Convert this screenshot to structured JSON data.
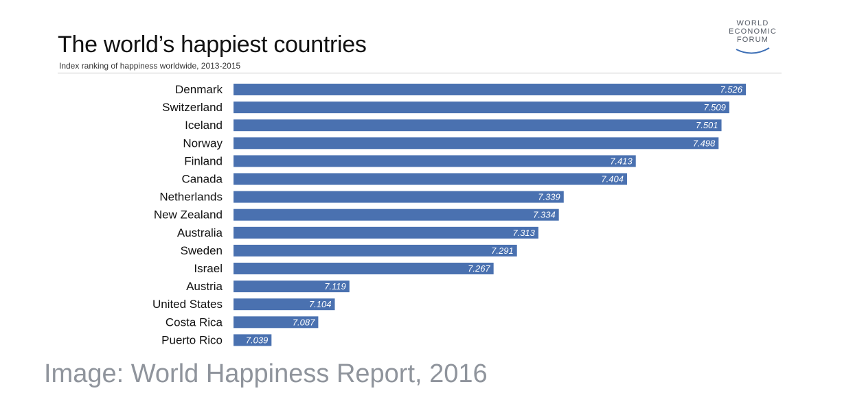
{
  "title": "The world’s happiest countries",
  "subtitle": "Index ranking of happiness worldwide, 2013-2015",
  "logo": {
    "lines": [
      "WORLD",
      "ECONOMIC",
      "FORUM"
    ]
  },
  "caption": "Image: World Happiness Report, 2016",
  "colors": {
    "bar": "#4a71b0",
    "bar_label": "#ffffff",
    "category_label": "#111111"
  },
  "chart_data": {
    "type": "bar",
    "orientation": "horizontal",
    "title": "The world’s happiest countries",
    "subtitle": "Index ranking of happiness worldwide, 2013-2015",
    "categories": [
      "Denmark",
      "Switzerland",
      "Iceland",
      "Norway",
      "Finland",
      "Canada",
      "Netherlands",
      "New Zealand",
      "Australia",
      "Sweden",
      "Israel",
      "Austria",
      "United States",
      "Costa Rica",
      "Puerto Rico"
    ],
    "values": [
      7.526,
      7.509,
      7.501,
      7.498,
      7.413,
      7.404,
      7.339,
      7.334,
      7.313,
      7.291,
      7.267,
      7.119,
      7.104,
      7.087,
      7.039
    ],
    "value_labels": [
      "7.526",
      "7.509",
      "7.501",
      "7.498",
      "7.413",
      "7.404",
      "7.339",
      "7.334",
      "7.313",
      "7.291",
      "7.267",
      "7.119",
      "7.104",
      "7.087",
      "7.039"
    ],
    "xlim": [
      7.0,
      7.55
    ],
    "grid": false,
    "legend": "none"
  }
}
